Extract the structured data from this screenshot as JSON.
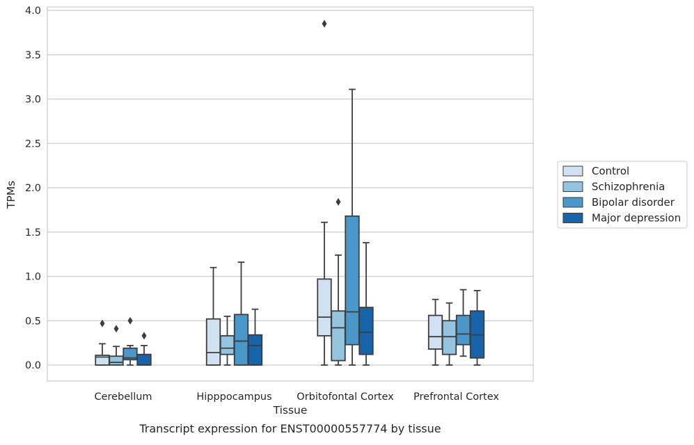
{
  "chart_data": {
    "type": "box",
    "xlabel": "Tissue",
    "ylabel": "TPMs",
    "caption": "Transcript expression for ENST00000557774 by tissue",
    "ylim": [
      -0.18,
      4.05
    ],
    "yticks": [
      "0.0",
      "0.5",
      "1.0",
      "1.5",
      "2.0",
      "2.5",
      "3.0",
      "3.5",
      "4.0"
    ],
    "grid": "horizontal",
    "legend_placement": "right",
    "categories": [
      "Cerebellum",
      "Hipppocampus",
      "Orbitofontal Cortex",
      "Prefrontal Cortex"
    ],
    "series": [
      {
        "name": "Control",
        "color": "#d0e1f2",
        "boxes": [
          {
            "min": 0.0,
            "q1": 0.0,
            "median": 0.09,
            "q3": 0.11,
            "max": 0.24,
            "outliers": [
              0.47
            ]
          },
          {
            "min": 0.0,
            "q1": 0.0,
            "median": 0.14,
            "q3": 0.52,
            "max": 1.1,
            "outliers": []
          },
          {
            "min": 0.0,
            "q1": 0.33,
            "median": 0.54,
            "q3": 0.97,
            "max": 1.61,
            "outliers": [
              3.85
            ]
          },
          {
            "min": 0.0,
            "q1": 0.18,
            "median": 0.32,
            "q3": 0.56,
            "max": 0.74,
            "outliers": []
          }
        ]
      },
      {
        "name": "Schizophrenia",
        "color": "#94c4df",
        "boxes": [
          {
            "min": 0.0,
            "q1": 0.0,
            "median": 0.03,
            "q3": 0.1,
            "max": 0.21,
            "outliers": [
              0.41
            ]
          },
          {
            "min": 0.0,
            "q1": 0.12,
            "median": 0.19,
            "q3": 0.33,
            "max": 0.55,
            "outliers": []
          },
          {
            "min": 0.0,
            "q1": 0.05,
            "median": 0.42,
            "q3": 0.61,
            "max": 1.24,
            "outliers": [
              1.84
            ]
          },
          {
            "min": 0.0,
            "q1": 0.12,
            "median": 0.32,
            "q3": 0.5,
            "max": 0.7,
            "outliers": []
          }
        ]
      },
      {
        "name": "Bipolar disorder",
        "color": "#4a98c9",
        "boxes": [
          {
            "min": 0.0,
            "q1": 0.06,
            "median": 0.08,
            "q3": 0.19,
            "max": 0.22,
            "outliers": [
              0.5
            ]
          },
          {
            "min": 0.0,
            "q1": 0.0,
            "median": 0.27,
            "q3": 0.57,
            "max": 1.16,
            "outliers": []
          },
          {
            "min": 0.0,
            "q1": 0.23,
            "median": 0.6,
            "q3": 1.68,
            "max": 3.11,
            "outliers": []
          },
          {
            "min": 0.1,
            "q1": 0.23,
            "median": 0.35,
            "q3": 0.56,
            "max": 0.85,
            "outliers": []
          }
        ]
      },
      {
        "name": "Major depression",
        "color": "#1764ab",
        "boxes": [
          {
            "min": 0.0,
            "q1": 0.0,
            "median": 0.0,
            "q3": 0.12,
            "max": 0.22,
            "outliers": [
              0.33
            ]
          },
          {
            "min": 0.0,
            "q1": 0.0,
            "median": 0.22,
            "q3": 0.34,
            "max": 0.63,
            "outliers": []
          },
          {
            "min": 0.0,
            "q1": 0.12,
            "median": 0.37,
            "q3": 0.65,
            "max": 1.38,
            "outliers": []
          },
          {
            "min": 0.0,
            "q1": 0.08,
            "median": 0.34,
            "q3": 0.61,
            "max": 0.84,
            "outliers": []
          }
        ]
      }
    ]
  }
}
